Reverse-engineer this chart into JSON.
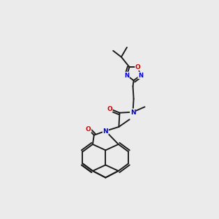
{
  "bg_color": "#ebebeb",
  "N_color": "#0000cc",
  "O_color": "#cc0000",
  "bond_color": "#1a1a1a",
  "lw": 1.4,
  "fs": 6.5
}
